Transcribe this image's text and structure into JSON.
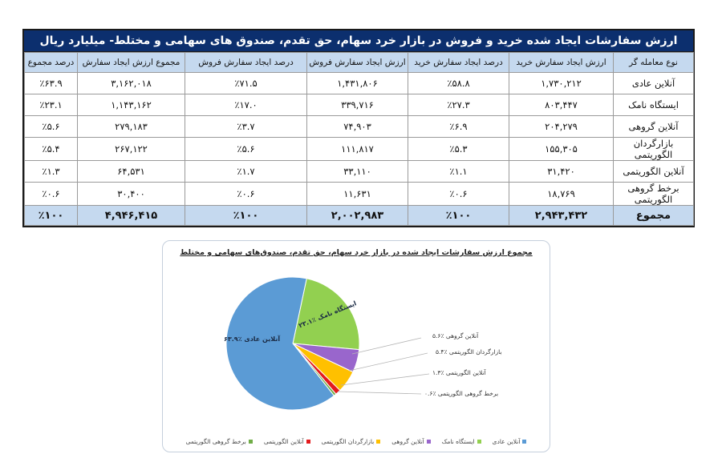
{
  "table": {
    "title": "ارزش سفارشات ایجاد شده خرید و فروش در بازار خرد سهام، حق تقدم، صندوق های سهامی و مختلط- میلیارد ریال",
    "headers": [
      "نوع معامله گر",
      "ارزش ایجاد سفارش خرید",
      "درصد ایجاد سفارش خرید",
      "ارزش ایجاد سفارش فروش",
      "درصد ایجاد سفارش فروش",
      "مجموع ارزش ایجاد سفارش",
      "درصد مجموع"
    ],
    "rows": [
      [
        "آنلاین عادی",
        "۱,۷۳۰,۲۱۲",
        "٪۵۸.۸",
        "۱,۴۳۱,۸۰۶",
        "٪۷۱.۵",
        "۳,۱۶۲,۰۱۸",
        "٪۶۳.۹"
      ],
      [
        "ایستگاه نامک",
        "۸۰۳,۴۴۷",
        "٪۲۷.۳",
        "۳۳۹,۷۱۶",
        "٪۱۷.۰",
        "۱,۱۴۳,۱۶۲",
        "٪۲۳.۱"
      ],
      [
        "آنلاین گروهی",
        "۲۰۴,۲۷۹",
        "٪۶.۹",
        "۷۴,۹۰۳",
        "٪۳.۷",
        "۲۷۹,۱۸۳",
        "٪۵.۶"
      ],
      [
        "بازارگردان الگوریتمی",
        "۱۵۵,۳۰۵",
        "٪۵.۳",
        "۱۱۱,۸۱۷",
        "٪۵.۶",
        "۲۶۷,۱۲۲",
        "٪۵.۴"
      ],
      [
        "آنلاین الگوریتمی",
        "۳۱,۴۲۰",
        "٪۱.۱",
        "۳۳,۱۱۰",
        "٪۱.۷",
        "۶۴,۵۳۱",
        "٪۱.۳"
      ],
      [
        "برخط گروهی الگوریتمی",
        "۱۸,۷۶۹",
        "٪۰.۶",
        "۱۱,۶۳۱",
        "٪۰.۶",
        "۳۰,۴۰۰",
        "٪۰.۶"
      ]
    ],
    "total": [
      "مجموع",
      "۲,۹۴۳,۴۳۲",
      "٪۱۰۰",
      "۲,۰۰۲,۹۸۳",
      "٪۱۰۰",
      "۴,۹۴۶,۴۱۵",
      "٪۱۰۰"
    ],
    "colors": {
      "title_bg": "#0c2f6e",
      "header_bg": "#c5d9ef"
    }
  },
  "chart": {
    "title": "مجموع ارزش سفارشات ایجاد شده در بازار خرد سهام، حق تقدم، صندوق‌های سهامی و مختلط",
    "inside_labels": {
      "online_normal": "آنلاین عادی ٪۶۳.۹",
      "namak": "ایستگاه نامک ٪۲۳.۱"
    },
    "callouts": [
      "آنلاین گروهی ٪۵.۶",
      "بازارگردان الگوریتمی ٪۵.۴",
      "آنلاین الگوریتمی ٪۱.۳",
      "برخط گروهی الگوریتمی ٪۰.۶"
    ],
    "legend": [
      {
        "label": "آنلاین عادی",
        "color": "#5B9BD5"
      },
      {
        "label": "ایستگاه نامک",
        "color": "#92D050"
      },
      {
        "label": "آنلاین گروهی",
        "color": "#9966CC"
      },
      {
        "label": "بازارگردان الگوریتمی",
        "color": "#FFC000"
      },
      {
        "label": "آنلاین الگوریتمی",
        "color": "#E31A1C"
      },
      {
        "label": "برخط گروهی الگوریتمی",
        "color": "#70AD47"
      }
    ]
  },
  "chart_data": {
    "type": "pie",
    "title": "مجموع ارزش سفارشات ایجاد شده در بازار خرد سهام، حق تقدم، صندوق‌های سهامی و مختلط",
    "categories": [
      "آنلاین عادی",
      "ایستگاه نامک",
      "آنلاین گروهی",
      "بازارگردان الگوریتمی",
      "آنلاین الگوریتمی",
      "برخط گروهی الگوریتمی"
    ],
    "values": [
      63.9,
      23.1,
      5.6,
      5.4,
      1.3,
      0.6
    ],
    "colors": [
      "#5B9BD5",
      "#92D050",
      "#9966CC",
      "#FFC000",
      "#E31A1C",
      "#70AD47"
    ],
    "legend_position": "bottom"
  }
}
